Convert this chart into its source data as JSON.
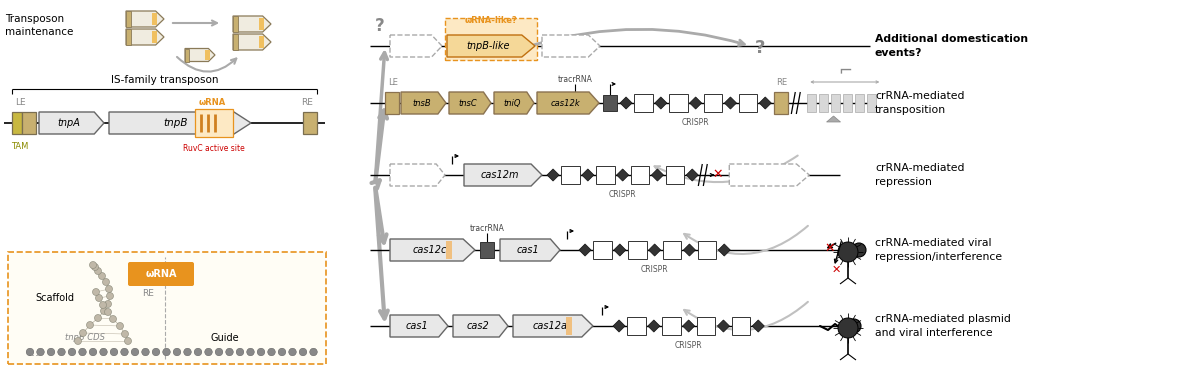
{
  "bg_color": "#ffffff",
  "orange_color": "#e8931e",
  "orange_bg": "#f5c97a",
  "orange_pale": "#fde9c4",
  "tan_color": "#c8b070",
  "tan_dark": "#8b7550",
  "red_color": "#cc0000",
  "gray_line": "#555555",
  "light_gray_fill": "#e8e8e8",
  "dark_gray_fill": "#555555",
  "crispr_gray": "#888888",
  "arrow_gray": "#aaaaaa",
  "dashed_edge": "#999999",
  "right_labels": [
    "crRNA-mediated plasmid\nand viral interference",
    "crRNA-mediated viral\nrepression/interference",
    "crRNA-mediated\nrepression",
    "crRNA-mediated\ntransposition",
    "Additional domestication\nevents?"
  ],
  "figsize": [
    12.0,
    3.69
  ],
  "dpi": 100
}
